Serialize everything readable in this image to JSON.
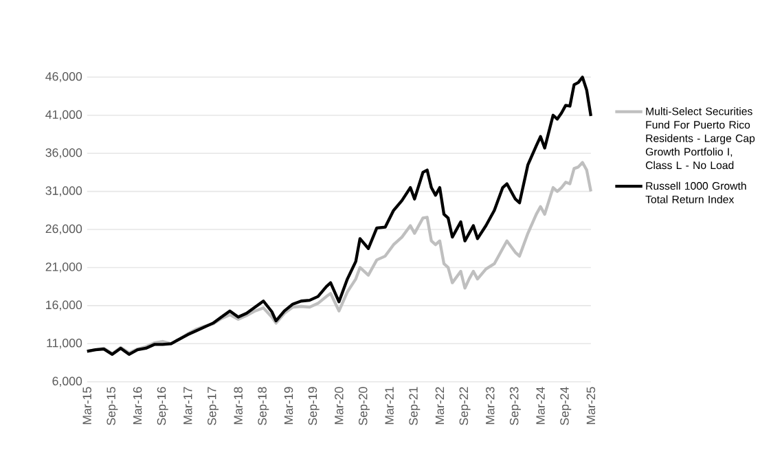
{
  "chart_data": {
    "type": "line",
    "legend": "right",
    "grid": "y",
    "line_style": "solid",
    "marker": "none",
    "x": [
      "2015-03",
      "2015-05",
      "2015-07",
      "2015-09",
      "2015-11",
      "2016-01",
      "2016-03",
      "2016-05",
      "2016-07",
      "2016-09",
      "2016-11",
      "2017-01",
      "2017-03",
      "2017-05",
      "2017-07",
      "2017-09",
      "2017-11",
      "2018-01",
      "2018-03",
      "2018-05",
      "2018-07",
      "2018-09",
      "2018-11",
      "2018-12",
      "2019-02",
      "2019-04",
      "2019-06",
      "2019-08",
      "2019-10",
      "2019-12",
      "2020-01",
      "2020-03",
      "2020-05",
      "2020-07",
      "2020-08",
      "2020-10",
      "2020-12",
      "2021-02",
      "2021-04",
      "2021-06",
      "2021-08",
      "2021-09",
      "2021-11",
      "2021-12",
      "2022-01",
      "2022-02",
      "2022-03",
      "2022-04",
      "2022-05",
      "2022-06",
      "2022-08",
      "2022-09",
      "2022-10",
      "2022-11",
      "2022-12",
      "2023-02",
      "2023-04",
      "2023-06",
      "2023-07",
      "2023-09",
      "2023-10",
      "2023-12",
      "2024-02",
      "2024-03",
      "2024-04",
      "2024-06",
      "2024-07",
      "2024-08",
      "2024-09",
      "2024-10",
      "2024-11",
      "2024-12",
      "2025-01",
      "2025-02",
      "2025-03"
    ],
    "series": [
      {
        "name": "Multi-Select Securities Fund For Puerto Rico Residents - Large Cap Growth Portfolio I, Class L - No Load",
        "color": "#bfbfbf",
        "values": [
          10000,
          10200,
          10400,
          9700,
          10500,
          9800,
          10300,
          10600,
          11100,
          11300,
          11000,
          11600,
          12300,
          12900,
          13300,
          13600,
          14300,
          14800,
          14200,
          14700,
          15300,
          15700,
          14500,
          13700,
          15000,
          15800,
          15900,
          15800,
          16300,
          17200,
          17600,
          15300,
          17800,
          19500,
          21000,
          20000,
          22000,
          22500,
          24000,
          25000,
          26500,
          25500,
          27500,
          27600,
          24500,
          24000,
          24500,
          21500,
          21000,
          19000,
          20500,
          18300,
          19500,
          20500,
          19500,
          20800,
          21500,
          23500,
          24500,
          23000,
          22500,
          25500,
          28000,
          29000,
          28000,
          31500,
          31000,
          31500,
          32200,
          32000,
          34000,
          34200,
          34800,
          33800,
          31000
        ]
      },
      {
        "name": "Russell 1000 Growth Total Return Index",
        "color": "#000000",
        "values": [
          10000,
          10200,
          10300,
          9600,
          10400,
          9600,
          10200,
          10400,
          10900,
          10900,
          11000,
          11600,
          12200,
          12700,
          13200,
          13700,
          14500,
          15300,
          14500,
          15000,
          15800,
          16600,
          15200,
          14000,
          15300,
          16200,
          16600,
          16700,
          17200,
          18500,
          19000,
          16500,
          19500,
          21800,
          24800,
          23500,
          26200,
          26300,
          28500,
          29800,
          31500,
          30000,
          33500,
          33800,
          31500,
          30500,
          31500,
          28000,
          27500,
          25000,
          27000,
          24500,
          25500,
          26500,
          24800,
          26500,
          28500,
          31500,
          32000,
          30000,
          29500,
          34500,
          37000,
          38200,
          36700,
          41000,
          40500,
          41300,
          42300,
          42200,
          45000,
          45300,
          46000,
          44300,
          40900
        ]
      }
    ],
    "xlim": [
      "2015-03",
      "2025-03"
    ],
    "xticks": [
      {
        "value": "2015-03",
        "label": "Mar-15"
      },
      {
        "value": "2015-09",
        "label": "Sep-15"
      },
      {
        "value": "2016-03",
        "label": "Mar-16"
      },
      {
        "value": "2016-09",
        "label": "Sep-16"
      },
      {
        "value": "2017-03",
        "label": "Mar-17"
      },
      {
        "value": "2017-09",
        "label": "Sep-17"
      },
      {
        "value": "2018-03",
        "label": "Mar-18"
      },
      {
        "value": "2018-09",
        "label": "Sep-18"
      },
      {
        "value": "2019-03",
        "label": "Mar-19"
      },
      {
        "value": "2019-09",
        "label": "Sep-19"
      },
      {
        "value": "2020-03",
        "label": "Mar-20"
      },
      {
        "value": "2020-09",
        "label": "Sep-20"
      },
      {
        "value": "2021-03",
        "label": "Mar-21"
      },
      {
        "value": "2021-09",
        "label": "Sep-21"
      },
      {
        "value": "2022-03",
        "label": "Mar-22"
      },
      {
        "value": "2022-09",
        "label": "Sep-22"
      },
      {
        "value": "2023-03",
        "label": "Mar-23"
      },
      {
        "value": "2023-09",
        "label": "Sep-23"
      },
      {
        "value": "2024-03",
        "label": "Mar-24"
      },
      {
        "value": "2024-09",
        "label": "Sep-24"
      },
      {
        "value": "2025-03",
        "label": "Mar-25"
      }
    ],
    "ylim": [
      6000,
      46000
    ],
    "yticks": [
      {
        "value": 6000,
        "label": "6,000"
      },
      {
        "value": 11000,
        "label": "11,000"
      },
      {
        "value": 16000,
        "label": "16,000"
      },
      {
        "value": 21000,
        "label": "21,000"
      },
      {
        "value": 26000,
        "label": "26,000"
      },
      {
        "value": 31000,
        "label": "31,000"
      },
      {
        "value": 36000,
        "label": "36,000"
      },
      {
        "value": 41000,
        "label": "41,000"
      },
      {
        "value": 46000,
        "label": "46,000"
      }
    ]
  }
}
